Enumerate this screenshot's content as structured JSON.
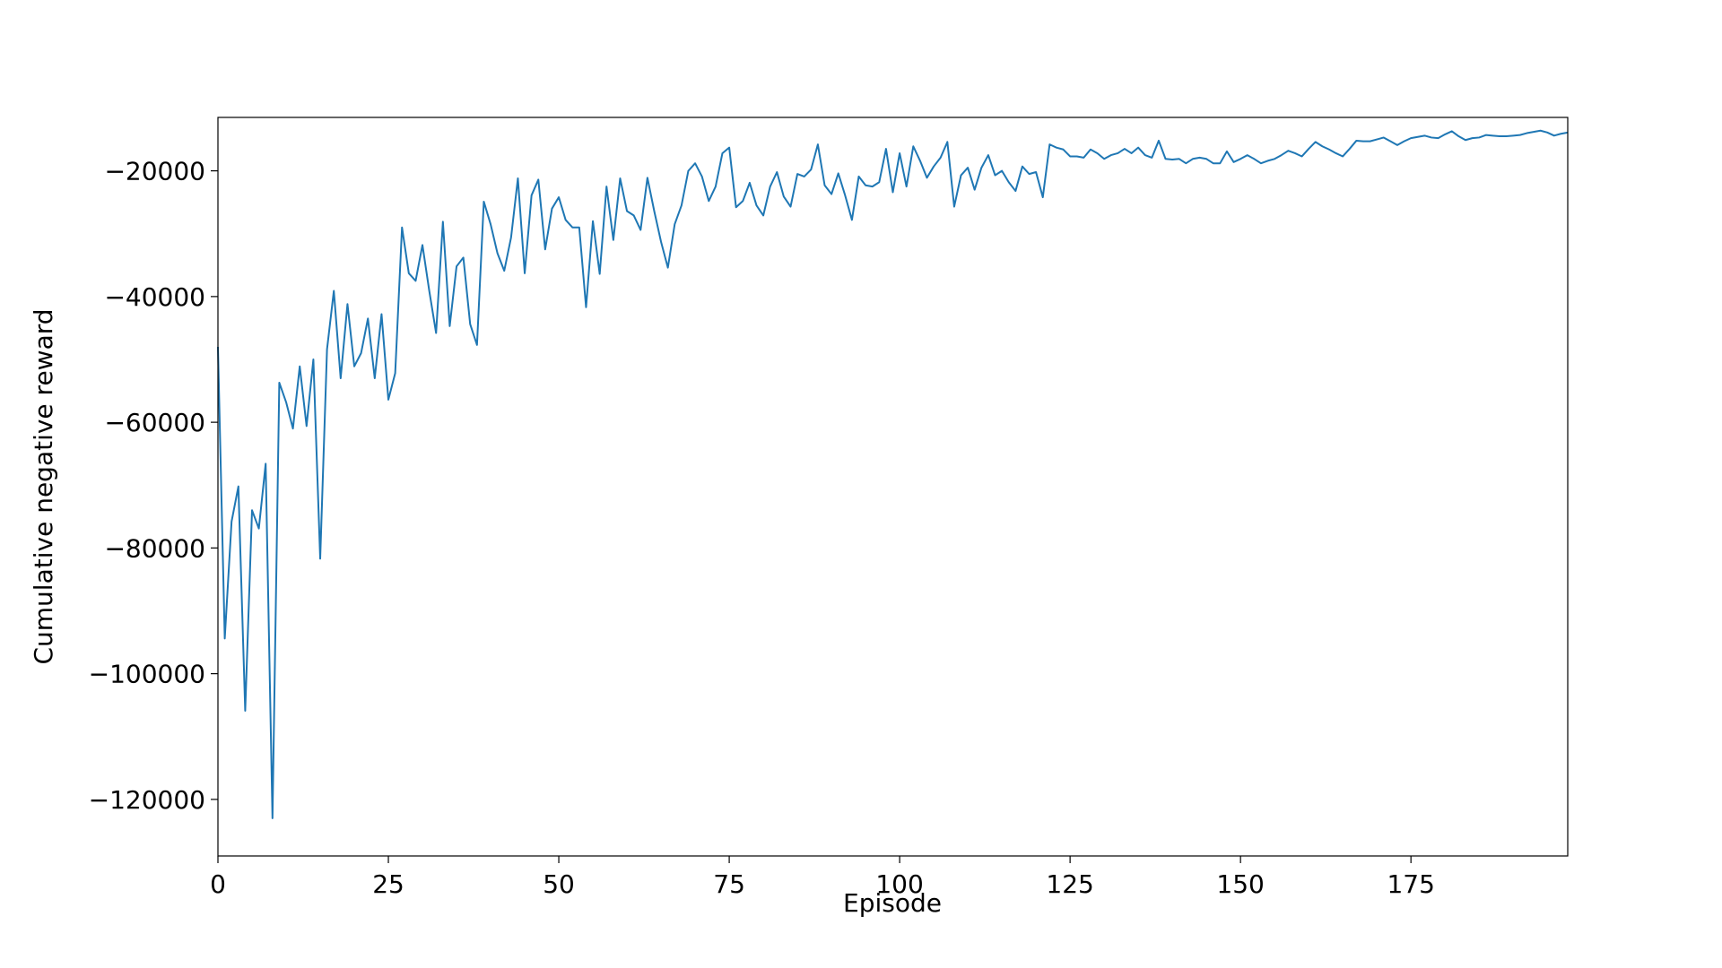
{
  "chart_data": {
    "type": "line",
    "xlabel": "Episode",
    "ylabel": "Cumulative negative reward",
    "x": [
      0,
      1,
      2,
      3,
      4,
      5,
      6,
      7,
      8,
      9,
      10,
      11,
      12,
      13,
      14,
      15,
      16,
      17,
      18,
      19,
      20,
      21,
      22,
      23,
      24,
      25,
      26,
      27,
      28,
      29,
      30,
      31,
      32,
      33,
      34,
      35,
      36,
      37,
      38,
      39,
      40,
      41,
      42,
      43,
      44,
      45,
      46,
      47,
      48,
      49,
      50,
      51,
      52,
      53,
      54,
      55,
      56,
      57,
      58,
      59,
      60,
      61,
      62,
      63,
      64,
      65,
      66,
      67,
      68,
      69,
      70,
      71,
      72,
      73,
      74,
      75,
      76,
      77,
      78,
      79,
      80,
      81,
      82,
      83,
      84,
      85,
      86,
      87,
      88,
      89,
      90,
      91,
      92,
      93,
      94,
      95,
      96,
      97,
      98,
      99,
      100,
      101,
      102,
      103,
      104,
      105,
      106,
      107,
      108,
      109,
      110,
      111,
      112,
      113,
      114,
      115,
      116,
      117,
      118,
      119,
      120,
      121,
      122,
      123,
      124,
      125,
      126,
      127,
      128,
      129,
      130,
      131,
      132,
      133,
      134,
      135,
      136,
      137,
      138,
      139,
      140,
      141,
      142,
      143,
      144,
      145,
      146,
      147,
      148,
      149,
      150,
      151,
      152,
      153,
      154,
      155,
      156,
      157,
      158,
      159,
      160,
      161,
      162,
      163,
      164,
      165,
      166,
      167,
      168,
      169,
      170,
      171,
      172,
      173,
      174,
      175,
      176,
      177,
      178,
      179,
      180,
      181,
      182,
      183,
      184,
      185,
      186,
      187,
      188,
      189,
      190,
      191,
      192,
      193,
      194,
      195,
      196,
      197,
      198
    ],
    "series": [
      {
        "color": "#1f77b4",
        "values": [
          -48000,
          -94400,
          -75800,
          -70200,
          -105900,
          -74000,
          -76900,
          -66600,
          -123000,
          -53700,
          -56800,
          -61000,
          -51100,
          -60600,
          -50000,
          -81700,
          -48400,
          -39100,
          -53000,
          -41200,
          -51100,
          -49000,
          -43500,
          -53000,
          -42800,
          -56400,
          -52200,
          -29000,
          -36300,
          -37500,
          -31800,
          -39100,
          -45800,
          -28100,
          -44700,
          -35200,
          -33800,
          -44400,
          -47700,
          -24900,
          -28500,
          -33100,
          -35900,
          -30600,
          -21200,
          -36300,
          -23900,
          -21400,
          -32500,
          -26000,
          -24200,
          -27800,
          -29000,
          -29000,
          -41700,
          -28000,
          -36400,
          -22500,
          -31000,
          -21200,
          -26400,
          -27100,
          -29400,
          -21100,
          -26400,
          -31300,
          -35400,
          -28500,
          -25500,
          -20000,
          -18800,
          -20900,
          -24800,
          -22500,
          -17200,
          -16300,
          -25800,
          -24800,
          -21900,
          -25500,
          -27100,
          -22500,
          -20200,
          -24100,
          -25700,
          -20500,
          -20900,
          -19800,
          -15800,
          -22300,
          -23700,
          -20400,
          -23900,
          -27800,
          -20900,
          -22300,
          -22500,
          -21800,
          -16500,
          -23400,
          -17200,
          -22500,
          -16100,
          -18400,
          -21100,
          -19300,
          -17900,
          -15400,
          -25700,
          -20700,
          -19500,
          -23000,
          -19500,
          -17500,
          -20700,
          -20000,
          -21800,
          -23200,
          -19300,
          -20500,
          -20200,
          -24200,
          -15800,
          -16300,
          -16600,
          -17700,
          -17700,
          -17900,
          -16600,
          -17200,
          -18100,
          -17500,
          -17200,
          -16500,
          -17200,
          -16300,
          -17500,
          -17900,
          -15200,
          -18100,
          -18200,
          -18100,
          -18800,
          -18100,
          -17900,
          -18100,
          -18800,
          -18800,
          -16900,
          -18600,
          -18100,
          -17500,
          -18100,
          -18800,
          -18400,
          -18100,
          -17500,
          -16800,
          -17200,
          -17700,
          -16500,
          -15400,
          -16100,
          -16600,
          -17200,
          -17700,
          -16500,
          -15200,
          -15300,
          -15300,
          -15000,
          -14700,
          -15300,
          -15900,
          -15300,
          -14800,
          -14600,
          -14400,
          -14700,
          -14800,
          -14200,
          -13700,
          -14500,
          -15100,
          -14800,
          -14700,
          -14300,
          -14400,
          -14500,
          -14500,
          -14400,
          -14300,
          -14000,
          -13800,
          -13600,
          -13900,
          -14400,
          -14100,
          -13900
        ]
      }
    ],
    "xlim": [
      0,
      198
    ],
    "xticks": [
      0,
      25,
      50,
      75,
      100,
      125,
      150,
      175
    ],
    "ylim": [
      -129000,
      -11500
    ],
    "yticks": [
      {
        "value": -120000,
        "label": "−120000"
      },
      {
        "value": -100000,
        "label": "−100000"
      },
      {
        "value": -80000,
        "label": "−80000"
      },
      {
        "value": -60000,
        "label": "−60000"
      },
      {
        "value": -40000,
        "label": "−40000"
      },
      {
        "value": -20000,
        "label": "−20000"
      }
    ],
    "grid": false
  }
}
